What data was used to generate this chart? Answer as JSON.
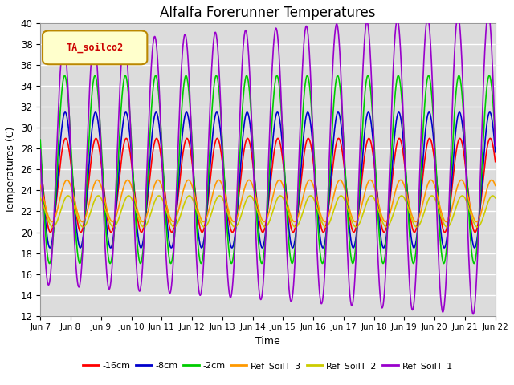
{
  "title": "Alfalfa Forerunner Temperatures",
  "xlabel": "Time",
  "ylabel": "Temperatures (C)",
  "ylim": [
    12,
    40
  ],
  "yticks": [
    12,
    14,
    16,
    18,
    20,
    22,
    24,
    26,
    28,
    30,
    32,
    34,
    36,
    38,
    40
  ],
  "xtick_labels": [
    "Jun 7",
    "Jun 8",
    "Jun 9",
    "Jun 10",
    "Jun 11",
    "Jun 12",
    "Jun 13",
    "Jun 14",
    "Jun 15",
    "Jun 16",
    "Jun 17",
    "Jun 18",
    "Jun 19",
    "Jun 20",
    "Jun 21",
    "Jun 22"
  ],
  "legend_label": "TA_soilco2",
  "series": [
    {
      "label": "-16cm",
      "color": "#ff0000"
    },
    {
      "label": "-8cm",
      "color": "#0000cc"
    },
    {
      "label": "-2cm",
      "color": "#00cc00"
    },
    {
      "label": "Ref_SoilT_3",
      "color": "#ff9900"
    },
    {
      "label": "Ref_SoilT_2",
      "color": "#cccc00"
    },
    {
      "label": "Ref_SoilT_1",
      "color": "#9900cc"
    }
  ],
  "bg_color": "#dcdcdc",
  "grid_color": "#ffffff",
  "n_days": 15,
  "samples_per_day": 96,
  "figsize": [
    6.4,
    4.8
  ],
  "dpi": 100
}
